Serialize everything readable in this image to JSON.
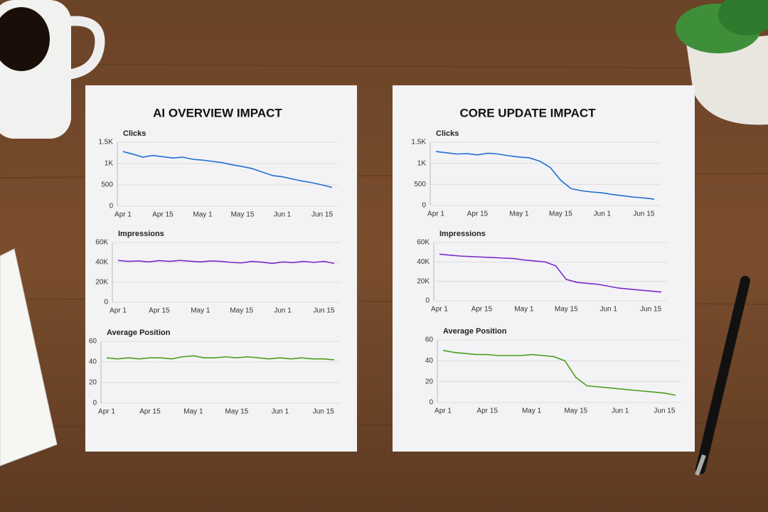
{
  "paper_titles": [
    "AI OVERVIEW IMPACT",
    "CORE UPDATE IMPACT"
  ],
  "chart_data": [
    {
      "type": "line",
      "title": "Clicks",
      "color": "#1f6fd1",
      "categories": [
        "Apr 1",
        null,
        null,
        null,
        "Apr 15",
        null,
        null,
        null,
        "May 1",
        null,
        null,
        null,
        "May 15",
        null,
        null,
        null,
        "Jun 1",
        null,
        null,
        null,
        "Jun 15",
        null
      ],
      "values": [
        1280,
        1220,
        1150,
        1190,
        1160,
        1130,
        1150,
        1100,
        1080,
        1050,
        1020,
        970,
        930,
        880,
        800,
        720,
        690,
        640,
        590,
        550,
        500,
        440
      ],
      "ylim": [
        0,
        1500
      ],
      "yticks": [
        0,
        500,
        {
          "value": 1000,
          "label": "1K"
        },
        {
          "value": 1500,
          "label": "1.5K"
        }
      ],
      "grid": true
    },
    {
      "type": "line",
      "title": "Impressions",
      "color": "#7a2bc9",
      "categories": [
        "Apr 1",
        null,
        null,
        null,
        "Apr 15",
        null,
        null,
        null,
        "May 1",
        null,
        null,
        null,
        "May 15",
        null,
        null,
        null,
        "Jun 1",
        null,
        null,
        null,
        "Jun 15",
        null
      ],
      "values": [
        42000,
        41000,
        41500,
        40500,
        41800,
        41000,
        42000,
        41200,
        40500,
        41500,
        41000,
        40000,
        39500,
        41000,
        40200,
        39000,
        40500,
        39800,
        41000,
        40000,
        41000,
        39000
      ],
      "ylim": [
        0,
        60000
      ],
      "yticks": [
        0,
        {
          "value": 20000,
          "label": "20K"
        },
        {
          "value": 40000,
          "label": "40K"
        },
        {
          "value": 60000,
          "label": "60K"
        }
      ],
      "grid": true
    },
    {
      "type": "line",
      "title": "Average Position",
      "color": "#4aa01c",
      "categories": [
        "Apr 1",
        null,
        null,
        null,
        "Apr 15",
        null,
        null,
        null,
        "May 1",
        null,
        null,
        null,
        "May 15",
        null,
        null,
        null,
        "Jun 1",
        null,
        null,
        null,
        "Jun 15",
        null
      ],
      "values": [
        44,
        43,
        44,
        43,
        44,
        44,
        43,
        45,
        46,
        44,
        44,
        45,
        44,
        45,
        44,
        43,
        44,
        43,
        44,
        43,
        43,
        42
      ],
      "ylim": [
        0,
        60
      ],
      "yticks": [
        0,
        20,
        40,
        60
      ],
      "grid": true
    },
    {
      "type": "line",
      "title": "Clicks",
      "color": "#1f6fd1",
      "categories": [
        "Apr 1",
        null,
        null,
        null,
        "Apr 15",
        null,
        null,
        null,
        "May 1",
        null,
        null,
        null,
        "May 15",
        null,
        null,
        null,
        "Jun 1",
        null,
        null,
        null,
        "Jun 15",
        null
      ],
      "values": [
        1280,
        1250,
        1220,
        1230,
        1200,
        1240,
        1220,
        1180,
        1150,
        1130,
        1050,
        900,
        600,
        400,
        350,
        320,
        300,
        260,
        230,
        200,
        180,
        150
      ],
      "ylim": [
        0,
        1500
      ],
      "yticks": [
        0,
        500,
        {
          "value": 1000,
          "label": "1K"
        },
        {
          "value": 1500,
          "label": "1.5K"
        }
      ],
      "grid": true
    },
    {
      "type": "line",
      "title": "Impressions",
      "color": "#7a2bc9",
      "categories": [
        "Apr 1",
        null,
        null,
        null,
        "Apr 15",
        null,
        null,
        null,
        "May 1",
        null,
        null,
        null,
        "May 15",
        null,
        null,
        null,
        "Jun 1",
        null,
        null,
        null,
        "Jun 15",
        null
      ],
      "values": [
        48000,
        47000,
        46000,
        45500,
        45000,
        44500,
        44000,
        43500,
        42000,
        41000,
        40000,
        36000,
        22000,
        19000,
        18000,
        17000,
        15000,
        13000,
        12000,
        11000,
        10000,
        9000
      ],
      "ylim": [
        0,
        60000
      ],
      "yticks": [
        0,
        {
          "value": 20000,
          "label": "20K"
        },
        {
          "value": 40000,
          "label": "40K"
        },
        {
          "value": 60000,
          "label": "60K"
        }
      ],
      "grid": true
    },
    {
      "type": "line",
      "title": "Average Position",
      "color": "#4aa01c",
      "categories": [
        "Apr 1",
        null,
        null,
        null,
        "Apr 15",
        null,
        null,
        null,
        "May 1",
        null,
        null,
        null,
        "May 15",
        null,
        null,
        null,
        "Jun 1",
        null,
        null,
        null,
        "Jun 15",
        null
      ],
      "values": [
        50,
        48,
        47,
        46,
        46,
        45,
        45,
        45,
        46,
        45,
        44,
        40,
        24,
        16,
        15,
        14,
        13,
        12,
        11,
        10,
        9,
        7
      ],
      "ylim": [
        0,
        60
      ],
      "yticks": [
        0,
        20,
        40,
        60
      ],
      "grid": true
    }
  ]
}
